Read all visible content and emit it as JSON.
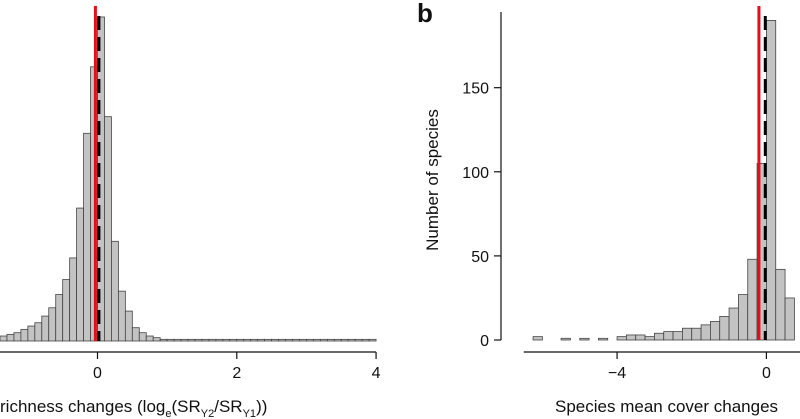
{
  "figure": {
    "panel_b_letter": "b",
    "colors": {
      "bar_fill": "#c3c3c3",
      "bar_stroke": "#444444",
      "axis": "#111111",
      "red_line": "#e3101a",
      "dashed_line": "#000000"
    }
  },
  "chart_data": [
    {
      "id": "panel-a",
      "type": "bar",
      "subtype": "histogram",
      "title": "",
      "xlabel_parts": [
        "richness changes (log",
        "e",
        "(SR",
        "Y2",
        "/SR",
        "Y1",
        "))"
      ],
      "ylabel": "",
      "xlim": [
        -1.4,
        4.2
      ],
      "ylim": [
        0,
        198
      ],
      "x_ticks": [
        0,
        2,
        4
      ],
      "x_tick_labels": [
        "0",
        "2",
        "4"
      ],
      "bin_width": 0.1,
      "bin_starts": [
        -1.4,
        -1.3,
        -1.2,
        -1.1,
        -1.0,
        -0.9,
        -0.8,
        -0.7,
        -0.6,
        -0.5,
        -0.4,
        -0.3,
        -0.2,
        -0.1,
        0.0,
        0.1,
        0.2,
        0.3,
        0.4,
        0.5,
        0.6,
        0.7,
        0.8,
        0.9,
        1.0,
        1.1,
        1.2,
        1.3,
        1.4,
        1.5,
        1.6,
        1.7,
        1.8,
        1.9,
        2.0,
        2.1,
        2.2,
        2.3,
        2.4,
        2.5,
        2.6,
        2.7,
        2.8,
        2.9,
        3.0,
        3.1,
        3.2,
        3.3,
        3.4,
        3.5,
        3.6,
        3.7,
        3.8,
        3.9
      ],
      "values": [
        3,
        4,
        5,
        7,
        9,
        11,
        15,
        20,
        28,
        37,
        50,
        80,
        125,
        165,
        195,
        135,
        60,
        30,
        18,
        8,
        5,
        3,
        2,
        1,
        1,
        1,
        1,
        1,
        1,
        1,
        1,
        1,
        1,
        1,
        1,
        1,
        1,
        1,
        1,
        1,
        1,
        1,
        1,
        1,
        1,
        1,
        1,
        1,
        1,
        1,
        1,
        1,
        1,
        1
      ],
      "ref_lines": [
        {
          "name": "red-solid",
          "x": -0.03
        },
        {
          "name": "black-dashed",
          "x": 0.02
        }
      ]
    },
    {
      "id": "panel-b",
      "type": "bar",
      "subtype": "histogram",
      "title": "",
      "xlabel": "Species mean cover changes",
      "ylabel": "Number of species",
      "xlim": [
        -6.6,
        0.9
      ],
      "ylim": [
        0,
        195
      ],
      "x_ticks": [
        -4,
        0
      ],
      "x_tick_labels": [
        "−4",
        "0"
      ],
      "y_ticks": [
        0,
        50,
        100,
        150
      ],
      "y_tick_labels": [
        "0",
        "50",
        "100",
        "150"
      ],
      "bin_width": 0.25,
      "bin_starts": [
        -6.25,
        -6.0,
        -5.75,
        -5.5,
        -5.25,
        -5.0,
        -4.75,
        -4.5,
        -4.25,
        -4.0,
        -3.75,
        -3.5,
        -3.25,
        -3.0,
        -2.75,
        -2.5,
        -2.25,
        -2.0,
        -1.75,
        -1.5,
        -1.25,
        -1.0,
        -0.75,
        -0.5,
        -0.25,
        0.0,
        0.25,
        0.5
      ],
      "values": [
        2,
        0,
        0,
        1,
        0,
        1,
        0,
        1,
        0,
        2,
        3,
        3,
        2,
        4,
        5,
        5,
        7,
        7,
        9,
        11,
        14,
        19,
        27,
        48,
        105,
        190,
        42,
        25
      ],
      "ref_lines": [
        {
          "name": "red-solid",
          "x": -0.2
        },
        {
          "name": "black-dashed",
          "x": -0.03
        }
      ]
    }
  ]
}
